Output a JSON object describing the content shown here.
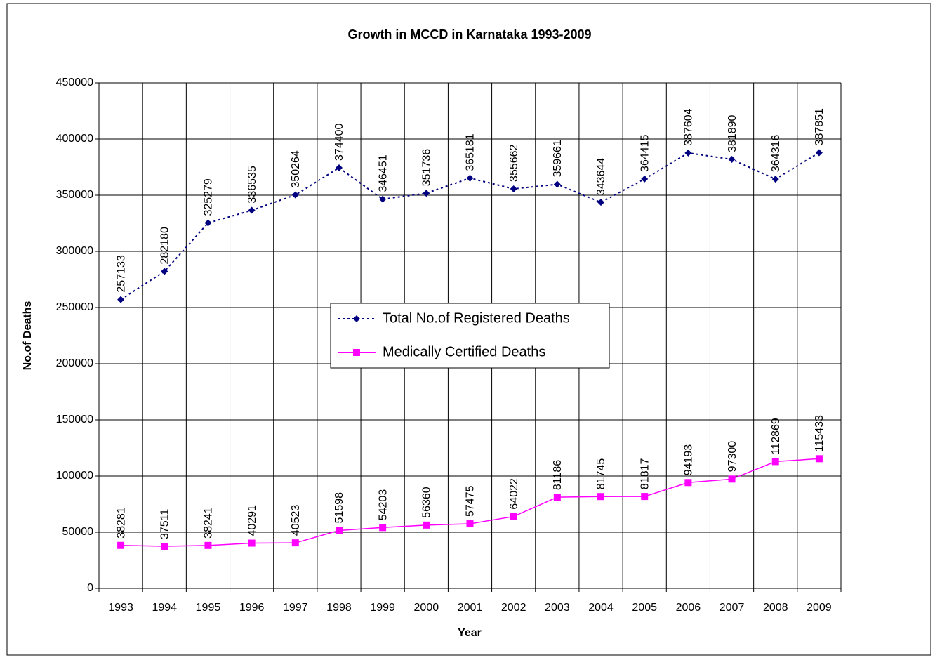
{
  "chart_data": {
    "type": "line",
    "title": "Growth in MCCD in Karnataka 1993-2009",
    "x_label": "Year",
    "y_label": "No.of Deaths",
    "categories": [
      "1993",
      "1994",
      "1995",
      "1996",
      "1997",
      "1998",
      "1999",
      "2000",
      "2001",
      "2002",
      "2003",
      "2004",
      "2005",
      "2006",
      "2007",
      "2008",
      "2009"
    ],
    "series": [
      {
        "name": "Total No.of Registered Deaths",
        "color": "#000080",
        "line_style": "dotted",
        "marker": "diamond",
        "values": [
          257133,
          282180,
          325279,
          336535,
          350264,
          374400,
          346451,
          351736,
          365181,
          355662,
          359661,
          343644,
          364415,
          387604,
          381890,
          364316,
          387851
        ]
      },
      {
        "name": "Medically Certified Deaths",
        "color": "#ff00ff",
        "line_style": "solid",
        "marker": "square",
        "values": [
          38281,
          37511,
          38241,
          40291,
          40523,
          51598,
          54203,
          56360,
          57475,
          64022,
          81186,
          81745,
          81817,
          94193,
          97300,
          112869,
          115433
        ]
      }
    ],
    "ylim": [
      0,
      450000
    ],
    "yticks": [
      0,
      50000,
      100000,
      150000,
      200000,
      250000,
      300000,
      350000,
      400000,
      450000
    ],
    "grid": true,
    "legend": "center"
  }
}
